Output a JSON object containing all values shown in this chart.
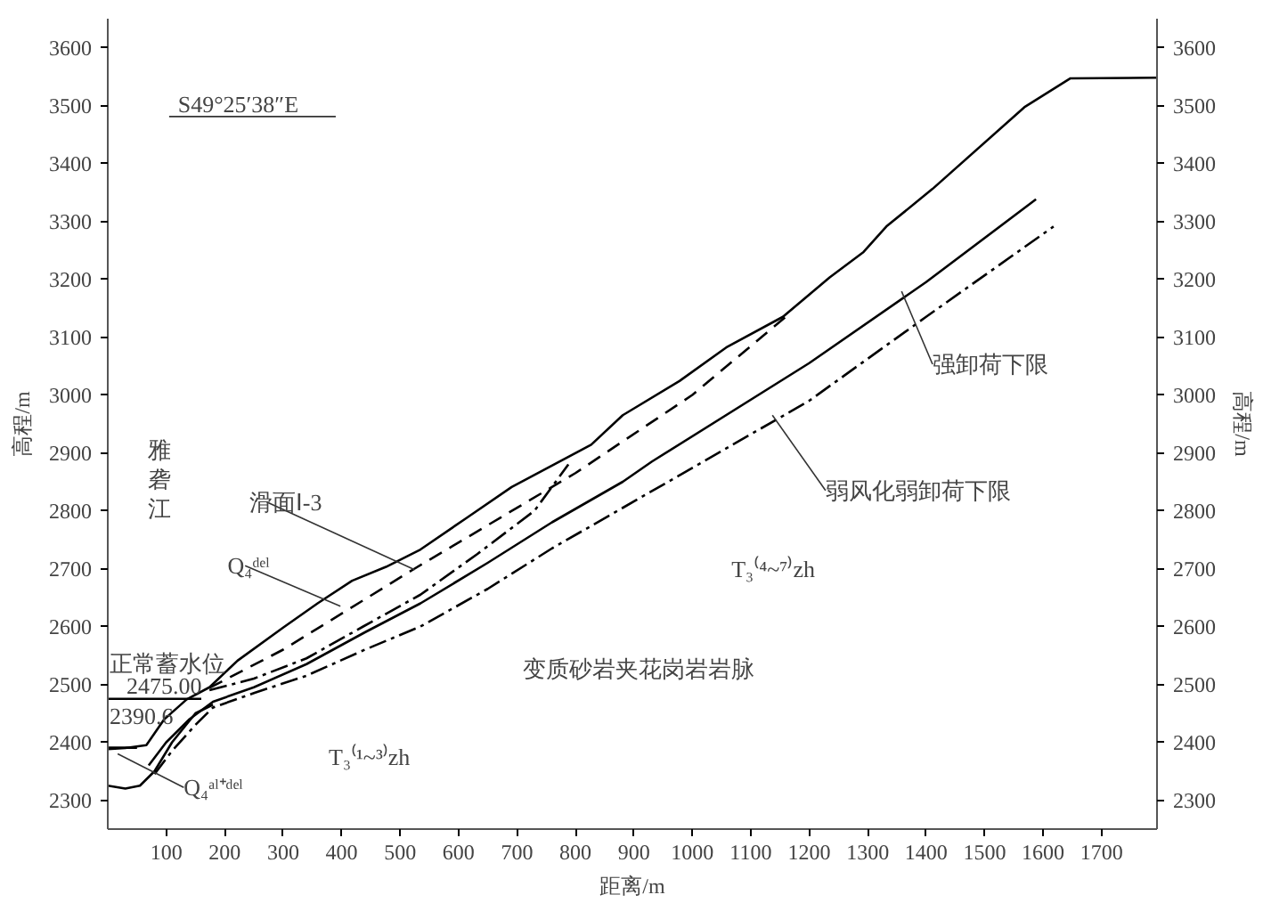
{
  "chart_data": {
    "type": "line",
    "xlabel": "距离/m",
    "ylabel": "高程/m",
    "y2label": "高程/m",
    "xlim": [
      0,
      1795
    ],
    "ylim": [
      2250,
      3650
    ],
    "y2lim": [
      2250,
      3650
    ],
    "xticks": [
      100,
      200,
      300,
      400,
      500,
      600,
      700,
      800,
      900,
      1000,
      1100,
      1200,
      1300,
      1400,
      1500,
      1600,
      1700
    ],
    "yticks": [
      2300,
      2400,
      2500,
      2600,
      2700,
      2800,
      2900,
      3000,
      3100,
      3200,
      3300,
      3400,
      3500,
      3600
    ],
    "y2ticks": [
      2300,
      2400,
      2500,
      2600,
      2700,
      2800,
      2900,
      3000,
      3100,
      3200,
      3300,
      3400,
      3500,
      3600
    ],
    "grid": false,
    "marker": "none",
    "series": [
      {
        "color": "#000000",
        "line_style": "solid",
        "x": [
          0,
          30,
          66,
          96,
          135,
          174,
          222,
          300,
          359,
          418,
          476,
          535,
          613,
          691,
          827,
          881,
          978,
          1058,
          1155,
          1235,
          1293,
          1332,
          1411,
          1568,
          1647,
          1794
        ],
        "values": [
          2388,
          2390,
          2395,
          2439,
          2474,
          2495,
          2541,
          2598,
          2640,
          2679,
          2703,
          2733,
          2787,
          2841,
          2914,
          2965,
          3024,
          3082,
          3135,
          3203,
          3247,
          3291,
          3356,
          3497,
          3547,
          3548
        ]
      },
      {
        "color": "#000000",
        "line_style": "dashed",
        "x": [
          174,
          300,
          525,
          800,
          1000,
          1167
        ],
        "values": [
          2494,
          2560,
          2700,
          2865,
          3000,
          3141
        ]
      },
      {
        "color": "#000000",
        "line_style": "dashdot",
        "x": [
          174,
          250,
          340,
          437,
          535,
          632,
          730,
          788
        ],
        "values": [
          2490,
          2510,
          2545,
          2600,
          2655,
          2725,
          2800,
          2880
        ]
      },
      {
        "color": "#000000",
        "line_style": "solid",
        "x": [
          70,
          100,
          140,
          180,
          250,
          340,
          440,
          535,
          650,
          760,
          881,
          931,
          1200,
          1400,
          1588
        ],
        "values": [
          2360,
          2400,
          2440,
          2470,
          2495,
          2535,
          2590,
          2640,
          2710,
          2780,
          2850,
          2885,
          3055,
          3195,
          3338
        ]
      },
      {
        "color": "#000000",
        "line_style": "dashdot",
        "x": [
          80,
          110,
          150,
          180,
          250,
          340,
          440,
          535,
          650,
          760,
          881,
          1019,
          1200,
          1400,
          1618
        ],
        "values": [
          2345,
          2385,
          2430,
          2460,
          2485,
          2515,
          2560,
          2600,
          2665,
          2735,
          2805,
          2885,
          2990,
          3135,
          3291
        ]
      },
      {
        "color": "#000000",
        "line_style": "solid",
        "x": [
          0,
          30,
          55,
          80,
          110,
          150,
          180
        ],
        "values": [
          2325,
          2320,
          2325,
          2350,
          2400,
          2450,
          2465
        ]
      },
      {
        "color": "#000000",
        "line_style": "solid",
        "x": [
          0,
          160
        ],
        "values": [
          2475,
          2475
        ]
      },
      {
        "color": "#000000",
        "line_style": "solid",
        "x": [
          0,
          50
        ],
        "values": [
          2390.6,
          2390.6
        ]
      }
    ],
    "annotations": [
      "S49°25′38″E",
      "雅砻江",
      {
        "text": "滑面Ⅰ-3",
        "x": 525,
        "y": 2698
      },
      {
        "text": "Q₄ᵈᵉˡ",
        "x": 398,
        "y": 2635
      },
      "正常蓄水位",
      "2475.00",
      "2390.6",
      {
        "text": "Q₄ᵃˡ⁺ᵈᵉˡ",
        "x": 17,
        "y": 2380
      },
      "T₃⁽¹~³⁾zh",
      "变质砂岩夹花岗岩岩脉",
      "T₃⁽⁴~⁷⁾zh",
      {
        "text": "强卸荷下限",
        "x": 1358,
        "y": 3179
      },
      {
        "text": "弱风化弱卸荷下限",
        "x": 1137,
        "y": 2965
      }
    ]
  }
}
